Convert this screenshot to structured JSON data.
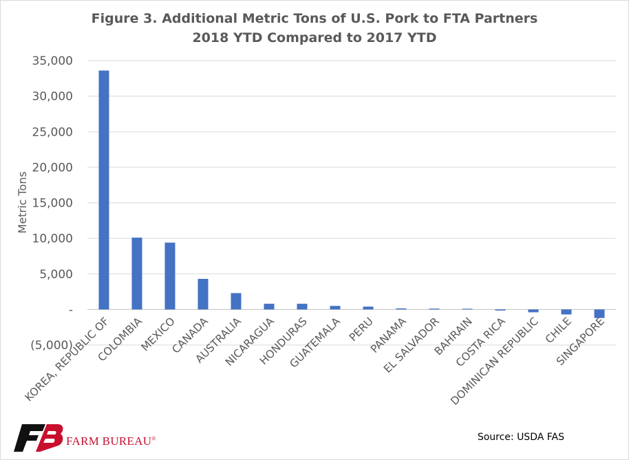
{
  "footer": {
    "source": "Source: USDA FAS",
    "brand": "FARM BUREAU",
    "brand_mark": "®",
    "logo_icon": "farm-bureau-fb-logo-icon"
  },
  "colors": {
    "bar": "#4472c4",
    "grid": "#d9d9d9",
    "text": "#595959",
    "brand": "#c8102e"
  },
  "chart_data": {
    "type": "bar",
    "title": "Figure 3. Additional Metric Tons of U.S. Pork to FTA Partners",
    "subtitle": "2018 YTD Compared to 2017 YTD",
    "xlabel": "",
    "ylabel": "Metric Tons",
    "ylim": [
      -5000,
      35000
    ],
    "yticks": [
      -5000,
      0,
      5000,
      10000,
      15000,
      20000,
      25000,
      30000,
      35000
    ],
    "ytick_labels": [
      "(5,000)",
      "-",
      "5,000",
      "10,000",
      "15,000",
      "20,000",
      "25,000",
      "30,000",
      "35,000"
    ],
    "grid": true,
    "legend": "none",
    "categories": [
      "KOREA, REPUBLIC OF",
      "COLOMBIA",
      "MEXICO",
      "CANADA",
      "AUSTRALIA",
      "NICARAGUA",
      "HONDURAS",
      "GUATEMALA",
      "PERU",
      "PANAMA",
      "EL SALVADOR",
      "BAHRAIN",
      "COSTA RICA",
      "DOMINICAN REPUBLIC",
      "CHILE",
      "SINGAPORE"
    ],
    "values": [
      33600,
      10100,
      9400,
      4300,
      2300,
      800,
      800,
      500,
      400,
      150,
      120,
      100,
      -150,
      -400,
      -700,
      -1200
    ]
  }
}
